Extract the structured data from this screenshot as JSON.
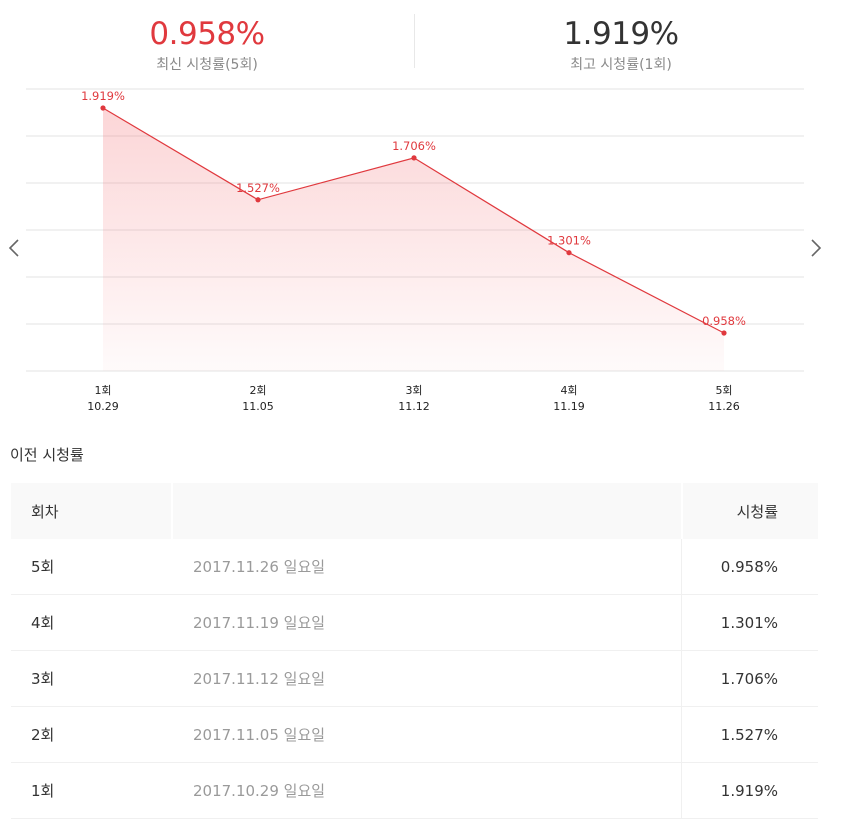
{
  "summary": {
    "latest": {
      "value": "0.958%",
      "label": "최신 시청률(5회)"
    },
    "highest": {
      "value": "1.919%",
      "label": "최고 시청률(1회)"
    }
  },
  "nav": {
    "prev_icon": "chevron-left-icon",
    "next_icon": "chevron-right-icon"
  },
  "colors": {
    "accent": "#e0393e",
    "grid": "#e3e3e3"
  },
  "chart_data": {
    "type": "area",
    "categories": [
      "1회",
      "2회",
      "3회",
      "4회",
      "5회"
    ],
    "dates": [
      "10.29",
      "11.05",
      "11.12",
      "11.19",
      "11.26"
    ],
    "values": [
      1.919,
      1.527,
      1.706,
      1.301,
      0.958
    ],
    "data_labels": [
      "1.919%",
      "1.527%",
      "1.706%",
      "1.301%",
      "0.958%"
    ],
    "grid": true,
    "title": "",
    "xlabel": "",
    "ylabel": ""
  },
  "table": {
    "section_title": "이전 시청률",
    "headers": {
      "episode": "회차",
      "date": "",
      "rating": "시청률"
    },
    "rows": [
      {
        "episode": "5회",
        "date": "2017.11.26 일요일",
        "rating": "0.958%"
      },
      {
        "episode": "4회",
        "date": "2017.11.19 일요일",
        "rating": "1.301%"
      },
      {
        "episode": "3회",
        "date": "2017.11.12 일요일",
        "rating": "1.706%"
      },
      {
        "episode": "2회",
        "date": "2017.11.05 일요일",
        "rating": "1.527%"
      },
      {
        "episode": "1회",
        "date": "2017.10.29 일요일",
        "rating": "1.919%"
      }
    ]
  }
}
